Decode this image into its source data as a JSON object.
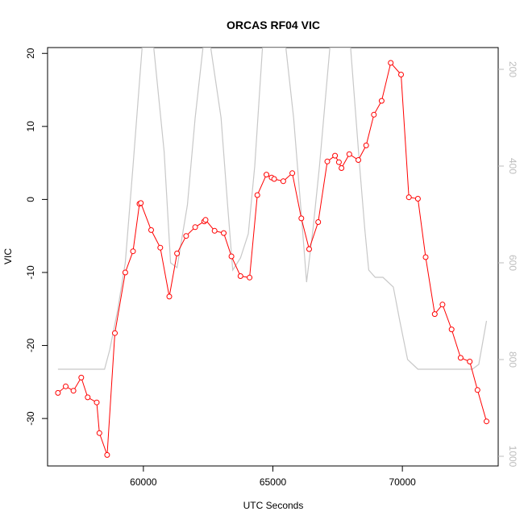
{
  "chart_data": {
    "type": "line",
    "title": "ORCAS RF04 VIC",
    "xlabel": "UTC Seconds",
    "ylabel": "VIC",
    "xlim": [
      56300,
      73700
    ],
    "ylim": [
      -36.5,
      20.8
    ],
    "xticks": [
      60000,
      65000,
      70000
    ],
    "yticks": [
      -30,
      -20,
      -10,
      0,
      10,
      20
    ],
    "y2lim": [
      1020,
      155
    ],
    "y2ticks": [
      200,
      400,
      600,
      800,
      1000
    ],
    "grid": false,
    "legend": "none",
    "series": [
      {
        "role": "primary",
        "color": "#ff0000",
        "marker": "open-circle",
        "points": [
          [
            56700,
            -26.5
          ],
          [
            57000,
            -25.6
          ],
          [
            57300,
            -26.2
          ],
          [
            57600,
            -24.4
          ],
          [
            57850,
            -27.1
          ],
          [
            58200,
            -27.8
          ],
          [
            58300,
            -32.0
          ],
          [
            58600,
            -35.0
          ],
          [
            58900,
            -18.3
          ],
          [
            59300,
            -10.0
          ],
          [
            59600,
            -7.1
          ],
          [
            59850,
            -0.6
          ],
          [
            59900,
            -0.5
          ],
          [
            60300,
            -4.2
          ],
          [
            60650,
            -6.6
          ],
          [
            61000,
            -13.3
          ],
          [
            61300,
            -7.4
          ],
          [
            61650,
            -5.0
          ],
          [
            62000,
            -3.8
          ],
          [
            62350,
            -3.0
          ],
          [
            62400,
            -2.8
          ],
          [
            62750,
            -4.3
          ],
          [
            63100,
            -4.6
          ],
          [
            63400,
            -7.8
          ],
          [
            63750,
            -10.5
          ],
          [
            64100,
            -10.7
          ],
          [
            64400,
            0.6
          ],
          [
            64750,
            3.4
          ],
          [
            64950,
            3.0
          ],
          [
            65050,
            2.8
          ],
          [
            65400,
            2.5
          ],
          [
            65750,
            3.6
          ],
          [
            66100,
            -2.6
          ],
          [
            66400,
            -6.8
          ],
          [
            66750,
            -3.1
          ],
          [
            67100,
            5.2
          ],
          [
            67400,
            6.0
          ],
          [
            67550,
            5.1
          ],
          [
            67650,
            4.3
          ],
          [
            67950,
            6.2
          ],
          [
            68300,
            5.4
          ],
          [
            68600,
            7.4
          ],
          [
            68900,
            11.6
          ],
          [
            69200,
            13.5
          ],
          [
            69550,
            18.7
          ],
          [
            69950,
            17.1
          ],
          [
            70250,
            0.3
          ],
          [
            70600,
            0.1
          ],
          [
            70900,
            -7.9
          ],
          [
            71250,
            -15.7
          ],
          [
            71550,
            -14.4
          ],
          [
            71900,
            -17.8
          ],
          [
            72250,
            -21.7
          ],
          [
            72600,
            -22.2
          ],
          [
            72900,
            -26.1
          ],
          [
            73250,
            -30.4
          ]
        ]
      },
      {
        "role": "secondary-right-axis",
        "color": "#c8c8c8",
        "points": [
          [
            56700,
            820
          ],
          [
            58500,
            820
          ],
          [
            58700,
            780
          ],
          [
            59000,
            700
          ],
          [
            59300,
            600
          ],
          [
            59600,
            400
          ],
          [
            59950,
            155
          ],
          [
            60400,
            155
          ],
          [
            60800,
            370
          ],
          [
            61050,
            600
          ],
          [
            61300,
            610
          ],
          [
            61700,
            480
          ],
          [
            62000,
            300
          ],
          [
            62300,
            155
          ],
          [
            62600,
            155
          ],
          [
            63000,
            300
          ],
          [
            63250,
            480
          ],
          [
            63450,
            615
          ],
          [
            63750,
            590
          ],
          [
            64050,
            540
          ],
          [
            64300,
            400
          ],
          [
            64600,
            155
          ],
          [
            65500,
            155
          ],
          [
            65800,
            300
          ],
          [
            66100,
            500
          ],
          [
            66300,
            640
          ],
          [
            66550,
            530
          ],
          [
            66800,
            400
          ],
          [
            67200,
            155
          ],
          [
            68000,
            155
          ],
          [
            68350,
            400
          ],
          [
            68550,
            530
          ],
          [
            68700,
            615
          ],
          [
            68950,
            630
          ],
          [
            69250,
            630
          ],
          [
            69650,
            650
          ],
          [
            69900,
            720
          ],
          [
            70200,
            800
          ],
          [
            70600,
            820
          ],
          [
            72700,
            820
          ],
          [
            72950,
            810
          ],
          [
            73250,
            720
          ]
        ]
      }
    ]
  }
}
